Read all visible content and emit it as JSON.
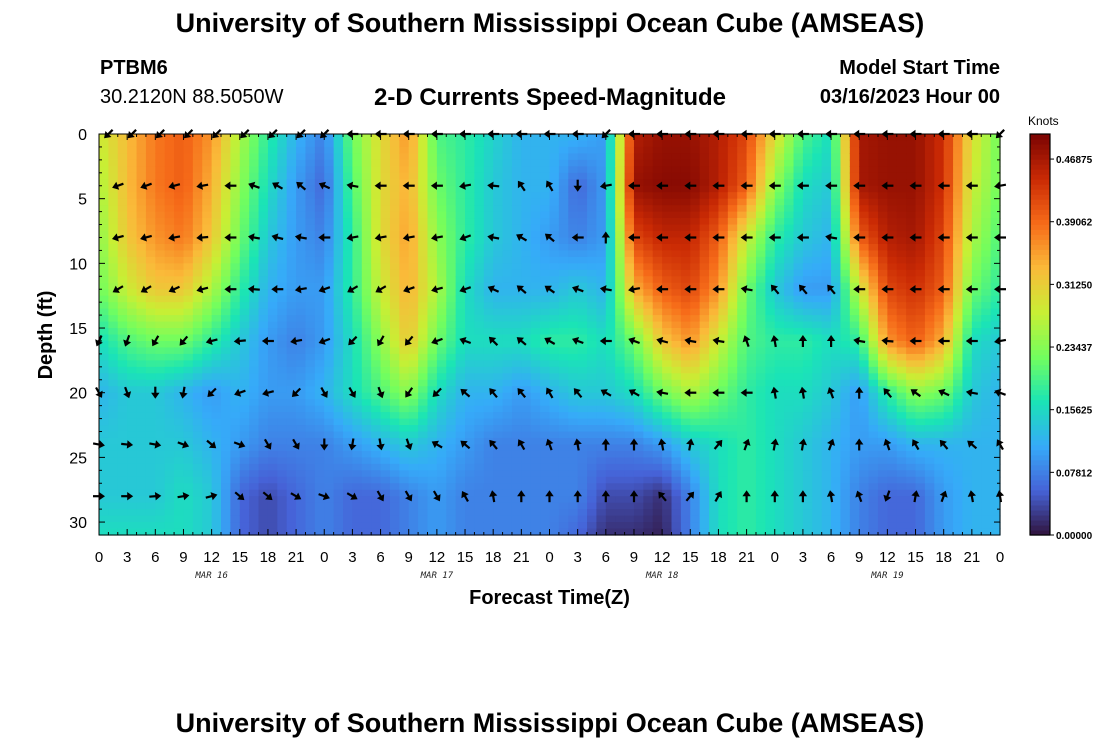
{
  "header": {
    "title": "University of Southern Mississippi Ocean Cube (AMSEAS)",
    "station_id": "PTBM6",
    "coords": "30.2120N  88.5050W",
    "subtitle": "2-D Currents Speed-Magnitude",
    "model_start_label": "Model Start Time",
    "model_start_value": "03/16/2023 Hour 00"
  },
  "footer": {
    "title": "University of Southern Mississippi Ocean Cube (AMSEAS)"
  },
  "colors": {
    "text": "#000000",
    "arrow": "#000000",
    "colormap": [
      "#30123b",
      "#4662d7",
      "#36aaf9",
      "#1ae4b6",
      "#72fe5e",
      "#c8ef34",
      "#faba39",
      "#f66b19",
      "#ca2a04",
      "#7a0403"
    ]
  },
  "chart_data": {
    "type": "heatmap",
    "title": "2-D Currents Speed-Magnitude",
    "xlabel": "Forecast Time(Z)",
    "ylabel": "Depth (ft)",
    "xlim": [
      0,
      96
    ],
    "ylim": [
      0,
      31
    ],
    "x_ticks": [
      0,
      3,
      6,
      9,
      12,
      15,
      18,
      21,
      24,
      27,
      30,
      33,
      36,
      39,
      42,
      45,
      48,
      51,
      54,
      57,
      60,
      63,
      66,
      69,
      72,
      75,
      78,
      81,
      84,
      87,
      90,
      93,
      96
    ],
    "x_tick_labels": [
      "0",
      "3",
      "6",
      "9",
      "12",
      "15",
      "18",
      "21",
      "0",
      "3",
      "6",
      "9",
      "12",
      "15",
      "18",
      "21",
      "0",
      "3",
      "6",
      "9",
      "12",
      "15",
      "18",
      "21",
      "0",
      "3",
      "6",
      "9",
      "12",
      "15",
      "18",
      "21",
      "0"
    ],
    "day_labels": [
      {
        "hour": 12,
        "label": "MAR 16"
      },
      {
        "hour": 36,
        "label": "MAR 17"
      },
      {
        "hour": 60,
        "label": "MAR 18"
      },
      {
        "hour": 84,
        "label": "MAR 19"
      }
    ],
    "y_ticks": [
      0,
      5,
      10,
      15,
      20,
      25,
      30
    ],
    "y_tick_labels": [
      "0",
      "5",
      "10",
      "15",
      "20",
      "25",
      "30"
    ],
    "colorbar": {
      "units": "Knots",
      "min": 0,
      "max": 0.5,
      "ticks": [
        0.0,
        0.078125,
        0.15625,
        0.234375,
        0.3125,
        0.390625,
        0.46875
      ],
      "tick_labels": [
        "0.00000",
        "0.07812",
        "0.15625",
        "0.23437",
        "0.31250",
        "0.39062",
        "0.46875"
      ]
    },
    "speed_hours": [
      0,
      3,
      6,
      9,
      12,
      15,
      18,
      21,
      24,
      27,
      30,
      33,
      36,
      39,
      42,
      45,
      48,
      51,
      54,
      57,
      60,
      63,
      66,
      69,
      72,
      75,
      78,
      81,
      84,
      87,
      90,
      93,
      96
    ],
    "speed_depths": [
      0,
      4,
      8,
      12,
      16,
      20,
      24,
      28,
      31
    ],
    "speed_knots": [
      [
        0.28,
        0.33,
        0.38,
        0.4,
        0.36,
        0.26,
        0.18,
        0.12,
        0.08,
        0.22,
        0.3,
        0.36,
        0.2,
        0.18,
        0.15,
        0.12,
        0.12,
        0.12,
        0.1,
        0.46,
        0.48,
        0.48,
        0.46,
        0.42,
        0.3,
        0.2,
        0.16,
        0.47,
        0.48,
        0.48,
        0.44,
        0.3,
        0.22
      ],
      [
        0.26,
        0.33,
        0.38,
        0.4,
        0.34,
        0.24,
        0.16,
        0.1,
        0.06,
        0.2,
        0.3,
        0.34,
        0.22,
        0.18,
        0.14,
        0.12,
        0.12,
        0.06,
        0.1,
        0.48,
        0.49,
        0.49,
        0.46,
        0.4,
        0.24,
        0.16,
        0.14,
        0.47,
        0.48,
        0.48,
        0.44,
        0.28,
        0.22
      ],
      [
        0.24,
        0.32,
        0.36,
        0.38,
        0.32,
        0.22,
        0.14,
        0.1,
        0.08,
        0.18,
        0.3,
        0.35,
        0.24,
        0.18,
        0.14,
        0.12,
        0.1,
        0.08,
        0.1,
        0.42,
        0.45,
        0.45,
        0.4,
        0.28,
        0.18,
        0.14,
        0.12,
        0.4,
        0.46,
        0.47,
        0.42,
        0.26,
        0.2
      ],
      [
        0.22,
        0.28,
        0.32,
        0.32,
        0.26,
        0.18,
        0.12,
        0.1,
        0.1,
        0.18,
        0.28,
        0.34,
        0.26,
        0.16,
        0.12,
        0.12,
        0.12,
        0.14,
        0.12,
        0.34,
        0.4,
        0.42,
        0.36,
        0.22,
        0.14,
        0.1,
        0.1,
        0.28,
        0.42,
        0.44,
        0.4,
        0.22,
        0.18
      ],
      [
        0.16,
        0.2,
        0.22,
        0.22,
        0.18,
        0.14,
        0.1,
        0.08,
        0.1,
        0.16,
        0.24,
        0.32,
        0.22,
        0.16,
        0.16,
        0.16,
        0.18,
        0.18,
        0.16,
        0.22,
        0.32,
        0.36,
        0.28,
        0.2,
        0.18,
        0.18,
        0.16,
        0.18,
        0.36,
        0.4,
        0.34,
        0.16,
        0.14
      ],
      [
        0.12,
        0.14,
        0.14,
        0.12,
        0.1,
        0.12,
        0.1,
        0.1,
        0.12,
        0.16,
        0.2,
        0.24,
        0.16,
        0.12,
        0.12,
        0.1,
        0.12,
        0.14,
        0.14,
        0.16,
        0.22,
        0.26,
        0.22,
        0.18,
        0.16,
        0.16,
        0.14,
        0.1,
        0.18,
        0.24,
        0.22,
        0.14,
        0.12
      ],
      [
        0.14,
        0.14,
        0.14,
        0.14,
        0.12,
        0.1,
        0.08,
        0.08,
        0.08,
        0.1,
        0.12,
        0.14,
        0.12,
        0.1,
        0.08,
        0.08,
        0.08,
        0.08,
        0.08,
        0.08,
        0.1,
        0.14,
        0.16,
        0.18,
        0.16,
        0.14,
        0.12,
        0.1,
        0.1,
        0.12,
        0.12,
        0.12,
        0.12
      ],
      [
        0.14,
        0.14,
        0.14,
        0.16,
        0.14,
        0.06,
        0.04,
        0.06,
        0.08,
        0.06,
        0.06,
        0.08,
        0.1,
        0.08,
        0.08,
        0.08,
        0.08,
        0.08,
        0.04,
        0.04,
        0.02,
        0.08,
        0.16,
        0.18,
        0.16,
        0.14,
        0.12,
        0.08,
        0.06,
        0.06,
        0.1,
        0.12,
        0.12
      ],
      [
        0.16,
        0.16,
        0.16,
        0.16,
        0.14,
        0.06,
        0.04,
        0.06,
        0.08,
        0.06,
        0.06,
        0.08,
        0.1,
        0.08,
        0.08,
        0.08,
        0.08,
        0.06,
        0.02,
        0.02,
        0.01,
        0.08,
        0.16,
        0.18,
        0.16,
        0.14,
        0.12,
        0.08,
        0.06,
        0.06,
        0.1,
        0.12,
        0.12
      ]
    ],
    "arrows": [
      {
        "depth": 0,
        "hours": [
          1,
          3.5,
          6.5,
          9.5,
          12.5,
          15.5,
          18.5,
          21.5,
          24,
          27,
          30,
          33,
          36,
          39,
          42,
          45,
          48,
          51,
          54,
          57,
          60,
          63,
          66,
          69,
          72,
          75,
          78,
          81,
          84,
          87,
          90,
          93,
          96
        ],
        "angles": [
          225,
          225,
          225,
          225,
          225,
          225,
          225,
          225,
          225,
          180,
          180,
          180,
          180,
          180,
          180,
          180,
          180,
          180,
          225,
          180,
          180,
          180,
          180,
          180,
          180,
          180,
          180,
          180,
          180,
          180,
          180,
          180,
          225
        ]
      },
      {
        "depth": 4,
        "hours": [
          2,
          5,
          8,
          11,
          14,
          16.5,
          19,
          21.5,
          24,
          27,
          30,
          33,
          36,
          39,
          42,
          45,
          48,
          51,
          54,
          57,
          60,
          63,
          66,
          69,
          72,
          75,
          78,
          81,
          84,
          87,
          90,
          93,
          96
        ],
        "angles": [
          200,
          200,
          195,
          190,
          180,
          160,
          150,
          140,
          155,
          170,
          180,
          180,
          180,
          190,
          175,
          125,
          120,
          270,
          190,
          180,
          180,
          180,
          180,
          180,
          180,
          180,
          180,
          180,
          180,
          180,
          180,
          180,
          190
        ]
      },
      {
        "depth": 8,
        "hours": [
          2,
          5,
          8,
          11,
          14,
          16.5,
          19,
          21.5,
          24,
          27,
          30,
          33,
          36,
          39,
          42,
          45,
          48,
          51,
          54,
          57,
          60,
          63,
          66,
          69,
          72,
          75,
          78,
          81,
          84,
          87,
          90,
          93,
          96
        ],
        "angles": [
          195,
          195,
          190,
          185,
          180,
          170,
          165,
          170,
          180,
          190,
          190,
          190,
          190,
          200,
          170,
          150,
          140,
          180,
          90,
          180,
          180,
          180,
          180,
          180,
          180,
          180,
          170,
          180,
          180,
          180,
          180,
          180,
          180
        ]
      },
      {
        "depth": 12,
        "hours": [
          2,
          5,
          8,
          11,
          14,
          16.5,
          19,
          21.5,
          24,
          27,
          30,
          33,
          36,
          39,
          42,
          45,
          48,
          51,
          54,
          57,
          60,
          63,
          66,
          69,
          72,
          75,
          78,
          81,
          84,
          87,
          90,
          93,
          96
        ],
        "angles": [
          210,
          210,
          205,
          195,
          180,
          175,
          180,
          190,
          200,
          210,
          210,
          200,
          195,
          200,
          155,
          140,
          145,
          160,
          170,
          190,
          180,
          180,
          180,
          170,
          130,
          130,
          130,
          180,
          180,
          180,
          180,
          180,
          180
        ]
      },
      {
        "depth": 16,
        "hours": [
          0,
          3,
          6,
          9,
          12,
          15,
          18,
          21,
          24,
          27,
          30,
          33,
          36,
          39,
          42,
          45,
          48,
          51,
          54,
          57,
          60,
          63,
          66,
          69,
          72,
          75,
          78,
          81,
          84,
          87,
          90,
          93,
          96
        ],
        "angles": [
          245,
          250,
          240,
          230,
          195,
          185,
          180,
          190,
          200,
          225,
          240,
          230,
          200,
          160,
          135,
          140,
          150,
          160,
          180,
          160,
          165,
          170,
          170,
          110,
          100,
          90,
          90,
          170,
          175,
          180,
          180,
          180,
          190
        ]
      },
      {
        "depth": 20,
        "hours": [
          0,
          3,
          6,
          9,
          12,
          15,
          18,
          21,
          24,
          27,
          30,
          33,
          36,
          39,
          42,
          45,
          48,
          51,
          54,
          57,
          60,
          63,
          66,
          69,
          72,
          75,
          78,
          81,
          84,
          87,
          90,
          93,
          96
        ],
        "angles": [
          300,
          290,
          270,
          260,
          225,
          200,
          195,
          225,
          300,
          300,
          290,
          235,
          225,
          140,
          130,
          130,
          120,
          130,
          150,
          150,
          170,
          180,
          180,
          180,
          100,
          100,
          110,
          90,
          130,
          145,
          155,
          170,
          160
        ]
      },
      {
        "depth": 24,
        "hours": [
          0,
          3,
          6,
          9,
          12,
          15,
          18,
          21,
          24,
          27,
          30,
          33,
          36,
          39,
          42,
          45,
          48,
          51,
          54,
          57,
          60,
          63,
          66,
          69,
          72,
          75,
          78,
          81,
          84,
          87,
          90,
          93,
          96
        ],
        "angles": [
          350,
          355,
          350,
          340,
          320,
          340,
          300,
          300,
          270,
          260,
          280,
          290,
          150,
          140,
          130,
          120,
          110,
          100,
          90,
          90,
          100,
          80,
          50,
          70,
          80,
          80,
          70,
          90,
          110,
          120,
          130,
          140,
          120
        ]
      },
      {
        "depth": 28,
        "hours": [
          0,
          3,
          6,
          9,
          12,
          15,
          18,
          21,
          24,
          27,
          30,
          33,
          36,
          39,
          42,
          45,
          48,
          51,
          54,
          57,
          60,
          63,
          66,
          69,
          72,
          75,
          78,
          81,
          84,
          87,
          90,
          93,
          96
        ],
        "angles": [
          0,
          0,
          5,
          10,
          15,
          320,
          320,
          330,
          340,
          330,
          300,
          300,
          300,
          120,
          100,
          90,
          90,
          90,
          90,
          90,
          130,
          50,
          60,
          90,
          90,
          90,
          100,
          110,
          250,
          80,
          70,
          100,
          100
        ]
      }
    ]
  }
}
